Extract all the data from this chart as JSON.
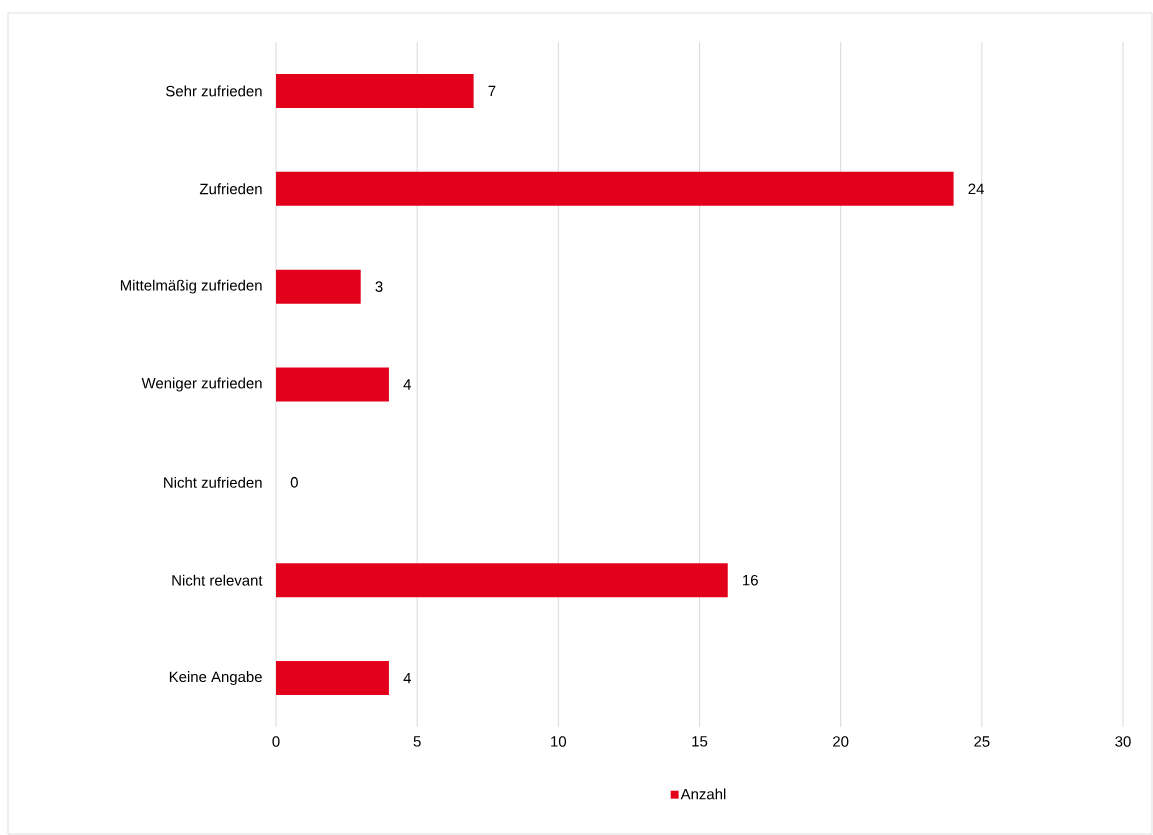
{
  "chart_data": {
    "type": "bar",
    "orientation": "horizontal",
    "categories": [
      "Sehr zufrieden",
      "Zufrieden",
      "Mittelmäßig zufrieden",
      "Weniger zufrieden",
      "Nicht zufrieden",
      "Nicht relevant",
      "Keine Angabe"
    ],
    "series": [
      {
        "name": "Anzahl",
        "color": "#e2001a",
        "values": [
          7,
          24,
          3,
          4,
          0,
          16,
          4
        ]
      }
    ],
    "xlim": [
      0,
      30
    ],
    "xticks": [
      0,
      5,
      10,
      15,
      20,
      25,
      30
    ],
    "grid": "x",
    "legend": "bottom",
    "data_labels": true
  }
}
